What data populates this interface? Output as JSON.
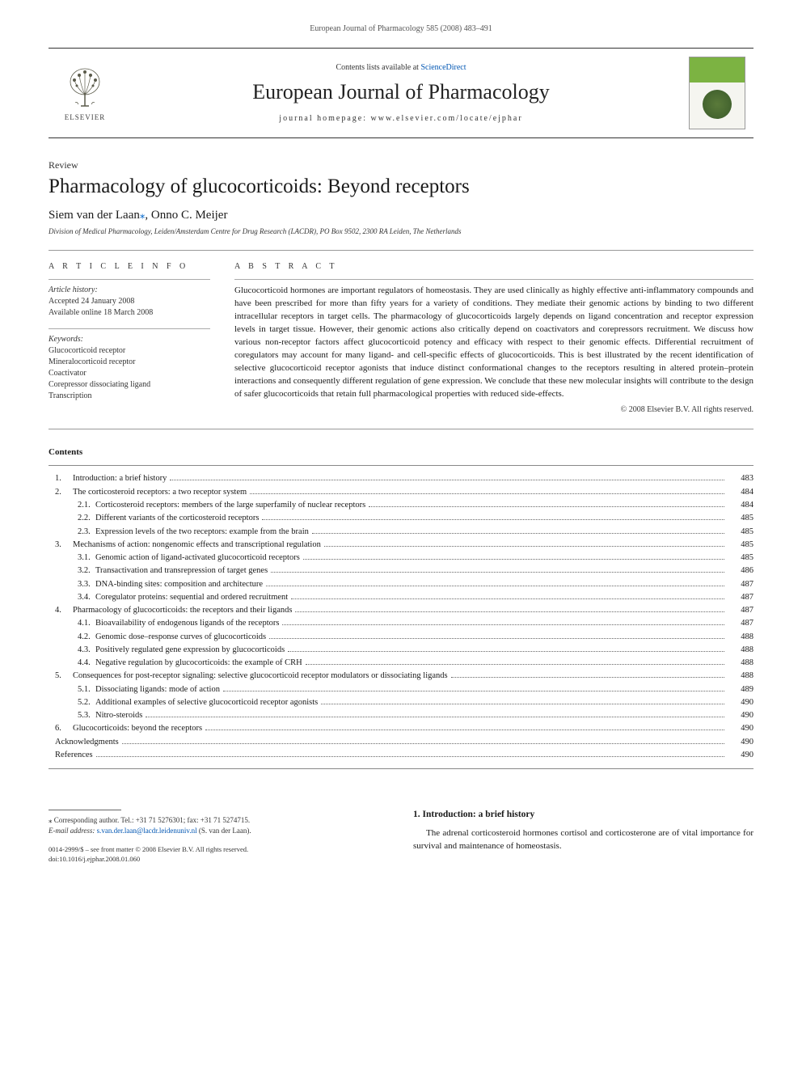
{
  "running_header": "European Journal of Pharmacology 585 (2008) 483–491",
  "masthead": {
    "contents_prefix": "Contents lists available at ",
    "contents_link": "ScienceDirect",
    "journal_title": "European Journal of Pharmacology",
    "homepage_label": "journal homepage: www.elsevier.com/locate/ejphar",
    "publisher_name": "ELSEVIER",
    "cover_top_color": "#7cb342",
    "cover_bottom_color": "#f5f5f0"
  },
  "article": {
    "type": "Review",
    "title": "Pharmacology of glucocorticoids: Beyond receptors",
    "authors_html": "Siem van der Laan",
    "author2": ", Onno C. Meijer",
    "corr_marker": "⁎",
    "affiliation": "Division of Medical Pharmacology, Leiden/Amsterdam Centre for Drug Research (LACDR), PO Box 9502, 2300 RA Leiden, The Netherlands"
  },
  "info": {
    "heading": "A R T I C L E   I N F O",
    "history_label": "Article history:",
    "accepted": "Accepted 24 January 2008",
    "online": "Available online 18 March 2008",
    "keywords_label": "Keywords:",
    "keywords": [
      "Glucocorticoid receptor",
      "Mineralocorticoid receptor",
      "Coactivator",
      "Corepressor dissociating ligand",
      "Transcription"
    ]
  },
  "abstract": {
    "heading": "A B S T R A C T",
    "text": "Glucocorticoid hormones are important regulators of homeostasis. They are used clinically as highly effective anti-inflammatory compounds and have been prescribed for more than fifty years for a variety of conditions. They mediate their genomic actions by binding to two different intracellular receptors in target cells. The pharmacology of glucocorticoids largely depends on ligand concentration and receptor expression levels in target tissue. However, their genomic actions also critically depend on coactivators and corepressors recruitment. We discuss how various non-receptor factors affect glucocorticoid potency and efficacy with respect to their genomic effects. Differential recruitment of coregulators may account for many ligand- and cell-specific effects of glucocorticoids. This is best illustrated by the recent identification of selective glucocorticoid receptor agonists that induce distinct conformational changes to the receptors resulting in altered protein–protein interactions and consequently different regulation of gene expression. We conclude that these new molecular insights will contribute to the design of safer glucocorticoids that retain full pharmacological properties with reduced side-effects.",
    "copyright": "© 2008 Elsevier B.V. All rights reserved."
  },
  "contents": {
    "heading": "Contents",
    "items": [
      {
        "level": 1,
        "num": "1.",
        "title": "Introduction: a brief history",
        "page": "483"
      },
      {
        "level": 1,
        "num": "2.",
        "title": "The corticosteroid receptors: a two receptor system",
        "page": "484"
      },
      {
        "level": 2,
        "num": "2.1.",
        "title": "Corticosteroid receptors: members of the large superfamily of nuclear receptors",
        "page": "484"
      },
      {
        "level": 2,
        "num": "2.2.",
        "title": "Different variants of the corticosteroid receptors",
        "page": "485"
      },
      {
        "level": 2,
        "num": "2.3.",
        "title": "Expression levels of the two receptors: example from the brain",
        "page": "485"
      },
      {
        "level": 1,
        "num": "3.",
        "title": "Mechanisms of action: nongenomic effects and transcriptional regulation",
        "page": "485"
      },
      {
        "level": 2,
        "num": "3.1.",
        "title": "Genomic action of ligand-activated glucocorticoid receptors",
        "page": "485"
      },
      {
        "level": 2,
        "num": "3.2.",
        "title": "Transactivation and transrepression of target genes",
        "page": "486"
      },
      {
        "level": 2,
        "num": "3.3.",
        "title": "DNA-binding sites: composition and architecture",
        "page": "487"
      },
      {
        "level": 2,
        "num": "3.4.",
        "title": "Coregulator proteins: sequential and ordered recruitment",
        "page": "487"
      },
      {
        "level": 1,
        "num": "4.",
        "title": "Pharmacology of glucocorticoids: the receptors and their ligands",
        "page": "487"
      },
      {
        "level": 2,
        "num": "4.1.",
        "title": "Bioavailability of endogenous ligands of the receptors",
        "page": "487"
      },
      {
        "level": 2,
        "num": "4.2.",
        "title": "Genomic dose–response curves of glucocorticoids",
        "page": "488"
      },
      {
        "level": 2,
        "num": "4.3.",
        "title": "Positively regulated gene expression by glucocorticoids",
        "page": "488"
      },
      {
        "level": 2,
        "num": "4.4.",
        "title": "Negative regulation by glucocorticoids: the example of CRH",
        "page": "488"
      },
      {
        "level": 1,
        "num": "5.",
        "title": "Consequences for post-receptor signaling: selective glucocorticoid receptor modulators or dissociating ligands",
        "page": "488"
      },
      {
        "level": 2,
        "num": "5.1.",
        "title": "Dissociating ligands: mode of action",
        "page": "489"
      },
      {
        "level": 2,
        "num": "5.2.",
        "title": "Additional examples of selective glucocorticoid receptor agonists",
        "page": "490"
      },
      {
        "level": 2,
        "num": "5.3.",
        "title": "Nitro-steroids",
        "page": "490"
      },
      {
        "level": 1,
        "num": "6.",
        "title": "Glucocorticoids: beyond the receptors",
        "page": "490"
      },
      {
        "level": 0,
        "num": "",
        "title": "Acknowledgments",
        "page": "490"
      },
      {
        "level": 0,
        "num": "",
        "title": "References",
        "page": "490"
      }
    ]
  },
  "corresponding": {
    "marker": "⁎",
    "text": " Corresponding author. Tel.: +31 71 5276301; fax: +31 71 5274715.",
    "email_label": "E-mail address: ",
    "email": "s.van.der.laan@lacdr.leidenuniv.nl",
    "email_suffix": " (S. van der Laan)."
  },
  "footer": {
    "line1": "0014-2999/$ – see front matter © 2008 Elsevier B.V. All rights reserved.",
    "line2": "doi:10.1016/j.ejphar.2008.01.060"
  },
  "section1": {
    "heading": "1. Introduction: a brief history",
    "para": "The adrenal corticosteroid hormones cortisol and corticosterone are of vital importance for survival and maintenance of homeostasis."
  },
  "colors": {
    "text": "#1a1a1a",
    "muted": "#333333",
    "link": "#0056b3",
    "rule": "#999999",
    "rule_dark": "#333333"
  },
  "typography": {
    "body_pt": 11,
    "title_pt": 25,
    "journal_title_pt": 26,
    "small_pt": 10,
    "tiny_pt": 9
  }
}
